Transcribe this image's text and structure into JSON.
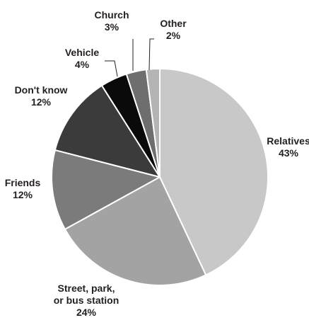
{
  "chart_data": {
    "type": "pie",
    "title": "",
    "unit": "%",
    "slices": [
      {
        "label": [
          "Relatives"
        ],
        "value": 43,
        "value_label": "43%",
        "color": "#c8c8c8"
      },
      {
        "label": [
          "Street, park,",
          "or bus station"
        ],
        "value": 24,
        "value_label": "24%",
        "color": "#a3a3a3"
      },
      {
        "label": [
          "Friends"
        ],
        "value": 12,
        "value_label": "12%",
        "color": "#7b7b7b"
      },
      {
        "label": [
          "Don't know"
        ],
        "value": 12,
        "value_label": "12%",
        "color": "#3b3b3b"
      },
      {
        "label": [
          "Vehicle"
        ],
        "value": 4,
        "value_label": "4%",
        "color": "#0a0a0a"
      },
      {
        "label": [
          "Church"
        ],
        "value": 3,
        "value_label": "3%",
        "color": "#6e6e6e"
      },
      {
        "label": [
          "Other"
        ],
        "value": 2,
        "value_label": "2%",
        "color": "#b4b4b4"
      }
    ],
    "start": "12 o'clock",
    "direction": "clockwise",
    "legend": "none"
  }
}
